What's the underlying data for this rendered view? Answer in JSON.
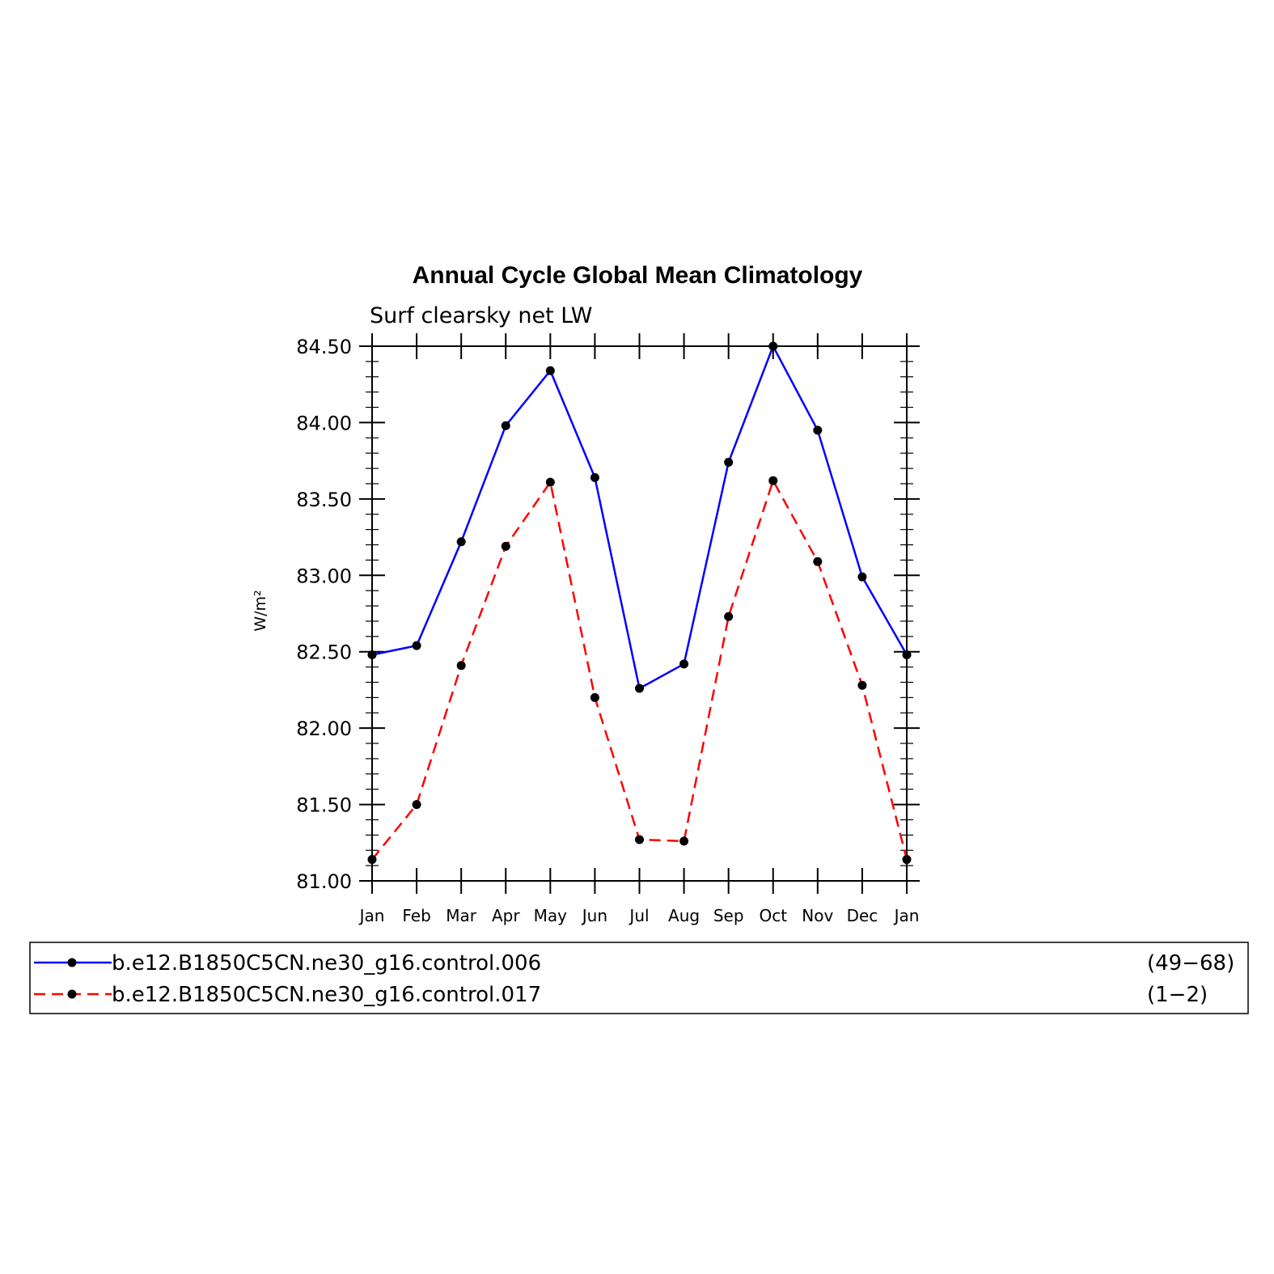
{
  "chart_data": {
    "type": "line",
    "title": "Annual Cycle Global Mean Climatology",
    "subtitle": "Surf clearsky net LW",
    "ylabel": "W/m²",
    "xlabel": "",
    "categories": [
      "Jan",
      "Feb",
      "Mar",
      "Apr",
      "May",
      "Jun",
      "Jul",
      "Aug",
      "Sep",
      "Oct",
      "Nov",
      "Dec",
      "Jan"
    ],
    "ylim": [
      81.0,
      84.5
    ],
    "yticks": [
      "84.50",
      "84.00",
      "83.50",
      "83.00",
      "82.50",
      "82.00",
      "81.50",
      "81.00"
    ],
    "series": [
      {
        "name": "b.e12.B1850C5CN.ne30_g16.control.006",
        "years": "(49−68)",
        "color": "#0000ff",
        "style": "solid",
        "values": [
          82.48,
          82.54,
          83.22,
          83.98,
          84.34,
          83.64,
          82.26,
          82.42,
          83.74,
          84.5,
          83.95,
          82.99,
          82.48
        ]
      },
      {
        "name": "b.e12.B1850C5CN.ne30_g16.control.017",
        "years": "(1−2)",
        "color": "#ff0000",
        "style": "dashed",
        "values": [
          81.14,
          81.5,
          82.41,
          83.19,
          83.61,
          82.2,
          81.27,
          81.26,
          82.73,
          83.62,
          83.09,
          82.28,
          81.14
        ]
      }
    ],
    "legend": "bottom",
    "grid": false
  }
}
